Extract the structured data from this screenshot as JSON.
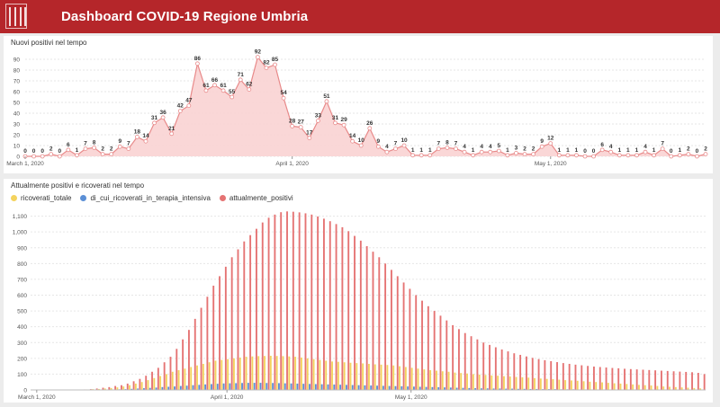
{
  "header": {
    "title": "Dashboard COVID-19 Regione Umbria"
  },
  "colors": {
    "header_bg": "#b5262a",
    "line": "#e88a8a",
    "area": "#f9d3d3",
    "ricoverati": "#f4d35e",
    "terapia": "#5b8fd6",
    "attuali": "#e57373"
  },
  "chart_data": [
    {
      "type": "area",
      "title": "Nuovi positivi nel tempo",
      "x_ticks": [
        "March 1, 2020",
        "April 1, 2020",
        "May 1, 2020"
      ],
      "y_ticks": [
        0,
        10,
        20,
        30,
        40,
        50,
        60,
        70,
        80,
        90
      ],
      "ylim": [
        0,
        100
      ],
      "grid": true,
      "values": [
        0,
        0,
        0,
        2,
        0,
        6,
        1,
        7,
        8,
        2,
        2,
        9,
        7,
        18,
        14,
        31,
        36,
        21,
        42,
        47,
        86,
        61,
        66,
        61,
        55,
        71,
        62,
        92,
        82,
        85,
        54,
        28,
        27,
        17,
        33,
        51,
        31,
        29,
        14,
        10,
        26,
        9,
        4,
        7,
        10,
        1,
        1,
        1,
        7,
        8,
        7,
        4,
        1,
        4,
        4,
        5,
        1,
        3,
        2,
        2,
        9,
        12,
        1,
        1,
        1,
        0,
        0,
        6,
        4,
        1,
        1,
        1,
        4,
        1,
        7,
        0,
        1,
        2,
        0,
        2
      ]
    },
    {
      "type": "bar",
      "title": "Attualmente positivi e ricoverati nel tempo",
      "legend_position": "top-left",
      "x_ticks": [
        "March 1, 2020",
        "April 1, 2020",
        "May 1, 2020"
      ],
      "y_ticks": [
        "0",
        "100",
        "200",
        "300",
        "400",
        "500",
        "600",
        "700",
        "800",
        "900",
        "1,000",
        "1,100"
      ],
      "ylim": [
        0,
        1200
      ],
      "grid": true,
      "series": [
        {
          "name": "ricoverati_totale",
          "values": [
            0,
            0,
            0,
            0,
            0,
            0,
            0,
            0,
            2,
            3,
            5,
            6,
            9,
            12,
            16,
            22,
            30,
            40,
            50,
            62,
            75,
            88,
            100,
            115,
            125,
            135,
            145,
            155,
            165,
            175,
            185,
            190,
            195,
            200,
            205,
            210,
            212,
            214,
            215,
            216,
            215,
            214,
            212,
            210,
            205,
            200,
            195,
            190,
            185,
            180,
            178,
            175,
            172,
            170,
            168,
            165,
            162,
            160,
            158,
            155,
            150,
            145,
            140,
            135,
            130,
            125,
            122,
            118,
            115,
            110,
            107,
            104,
            100,
            97,
            95,
            92,
            90,
            87,
            85,
            82,
            80,
            78,
            75,
            72,
            70,
            68,
            65,
            62,
            60,
            58,
            55,
            52,
            50,
            48,
            45,
            42,
            40,
            38,
            35,
            32,
            30,
            28,
            25,
            22,
            20,
            18,
            16,
            14,
            12,
            10
          ]
        },
        {
          "name": "di_cui_ricoverati_in_terapia_intensiva",
          "values": [
            0,
            0,
            0,
            0,
            0,
            0,
            0,
            0,
            0,
            0,
            1,
            1,
            2,
            3,
            4,
            5,
            7,
            9,
            11,
            13,
            15,
            18,
            20,
            22,
            25,
            27,
            30,
            32,
            35,
            37,
            39,
            41,
            42,
            43,
            44,
            45,
            45,
            45,
            44,
            44,
            43,
            42,
            41,
            40,
            39,
            38,
            37,
            36,
            35,
            34,
            33,
            32,
            31,
            30,
            29,
            28,
            27,
            26,
            25,
            24,
            23,
            22,
            21,
            20,
            19,
            18,
            17,
            16,
            15,
            14,
            13,
            12,
            11,
            10,
            10,
            9,
            9,
            8,
            8,
            7,
            7,
            6,
            6,
            5,
            5,
            5,
            4,
            4,
            4,
            3,
            3,
            3,
            3,
            2,
            2,
            2,
            2,
            2,
            1,
            1,
            1,
            1,
            1,
            1,
            1,
            1,
            1,
            1,
            1,
            1
          ]
        },
        {
          "name": "attualmente_positivi",
          "values": [
            0,
            0,
            0,
            0,
            0,
            0,
            0,
            1,
            3,
            5,
            9,
            14,
            18,
            25,
            30,
            40,
            55,
            70,
            90,
            115,
            140,
            175,
            210,
            260,
            320,
            380,
            450,
            520,
            590,
            660,
            720,
            780,
            840,
            890,
            940,
            980,
            1020,
            1060,
            1090,
            1110,
            1125,
            1130,
            1128,
            1124,
            1118,
            1110,
            1098,
            1084,
            1068,
            1050,
            1030,
            1005,
            975,
            945,
            910,
            875,
            840,
            800,
            760,
            720,
            680,
            640,
            600,
            565,
            530,
            500,
            470,
            440,
            410,
            385,
            360,
            340,
            320,
            300,
            285,
            270,
            256,
            244,
            232,
            222,
            212,
            203,
            195,
            188,
            182,
            176,
            170,
            165,
            160,
            156,
            152,
            148,
            145,
            142,
            139,
            137,
            134,
            132,
            130,
            128,
            126,
            124,
            122,
            120,
            118,
            116,
            114,
            112,
            108,
            100
          ]
        }
      ]
    }
  ]
}
